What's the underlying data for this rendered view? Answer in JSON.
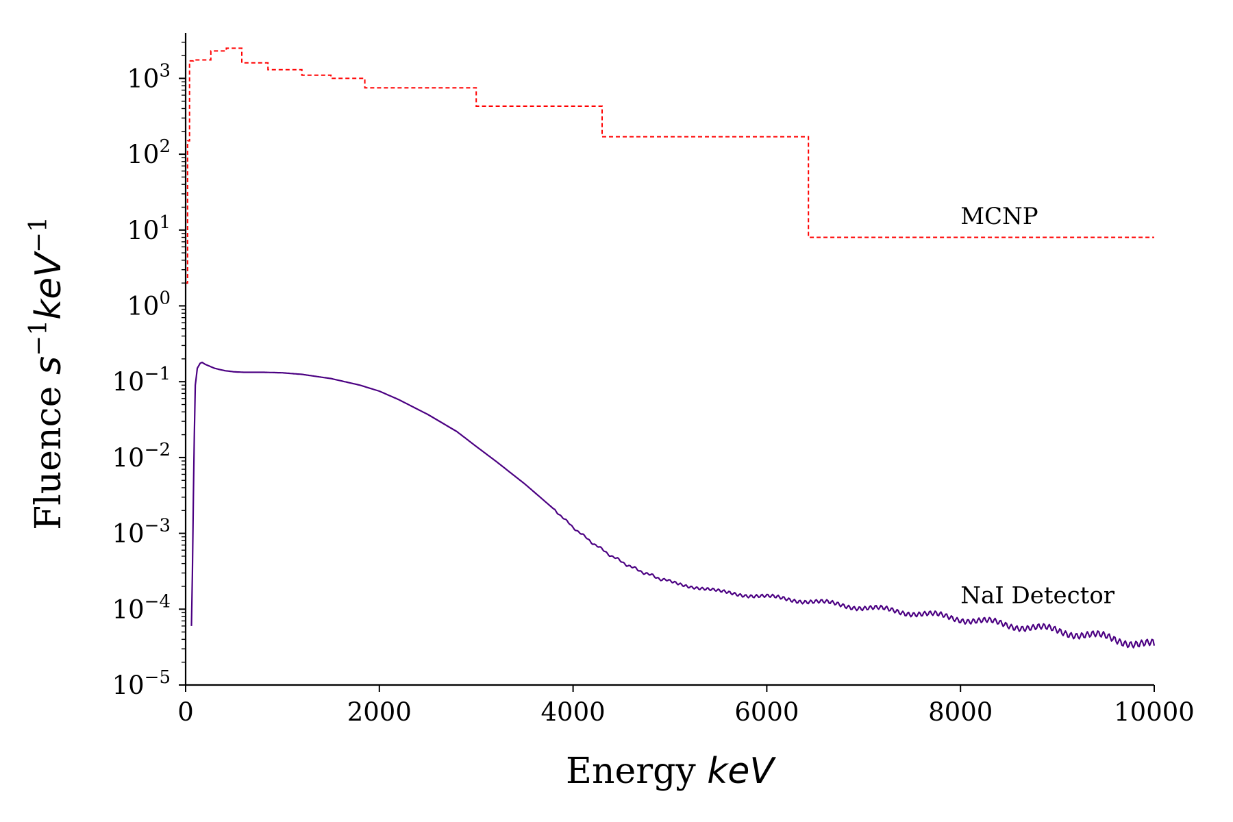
{
  "chart_data": {
    "type": "line",
    "xlabel": {
      "text": "Energy ",
      "unit": "keV"
    },
    "ylabel": {
      "text": "Fluence ",
      "unit_s": "s",
      "unit_s_exp": "−1",
      "unit_kev": "keV",
      "unit_kev_exp": "−1"
    },
    "xlim": [
      0,
      10000
    ],
    "ylim_log10": [
      -5,
      3.6
    ],
    "y_scale": "log",
    "grid": false,
    "x_ticks": [
      {
        "value": 0,
        "label": "0"
      },
      {
        "value": 2000,
        "label": "2000"
      },
      {
        "value": 4000,
        "label": "4000"
      },
      {
        "value": 6000,
        "label": "6000"
      },
      {
        "value": 8000,
        "label": "8000"
      },
      {
        "value": 10000,
        "label": "10000"
      }
    ],
    "y_ticks": [
      {
        "exp": 3,
        "base": "10",
        "power": "3"
      },
      {
        "exp": 2,
        "base": "10",
        "power": "2"
      },
      {
        "exp": 1,
        "base": "10",
        "power": "1"
      },
      {
        "exp": 0,
        "base": "10",
        "power": "0"
      },
      {
        "exp": -1,
        "base": "10",
        "power": "−1"
      },
      {
        "exp": -2,
        "base": "10",
        "power": "−2"
      },
      {
        "exp": -3,
        "base": "10",
        "power": "−3"
      },
      {
        "exp": -4,
        "base": "10",
        "power": "−4"
      },
      {
        "exp": -5,
        "base": "10",
        "power": "−5"
      }
    ],
    "series": [
      {
        "name": "MCNP",
        "style": "dashed-step",
        "color": "#ff0000",
        "label_at": {
          "x": 8000,
          "y": 12
        },
        "steps": [
          {
            "x0": 0,
            "x1": 20,
            "y": 2
          },
          {
            "x0": 20,
            "x1": 40,
            "y": 150
          },
          {
            "x0": 40,
            "x1": 80,
            "y": 1700
          },
          {
            "x0": 80,
            "x1": 260,
            "y": 1750
          },
          {
            "x0": 260,
            "x1": 420,
            "y": 2300
          },
          {
            "x0": 420,
            "x1": 580,
            "y": 2500
          },
          {
            "x0": 580,
            "x1": 850,
            "y": 1600
          },
          {
            "x0": 850,
            "x1": 1200,
            "y": 1300
          },
          {
            "x0": 1200,
            "x1": 1500,
            "y": 1100
          },
          {
            "x0": 1500,
            "x1": 1850,
            "y": 1000
          },
          {
            "x0": 1850,
            "x1": 3000,
            "y": 750
          },
          {
            "x0": 3000,
            "x1": 4300,
            "y": 430
          },
          {
            "x0": 4300,
            "x1": 6430,
            "y": 170
          },
          {
            "x0": 6430,
            "x1": 10000,
            "y": 8
          }
        ]
      },
      {
        "name": "NaI Detector",
        "style": "solid",
        "color": "#4b0082",
        "label_at": {
          "x": 8000,
          "y": 0.00012
        },
        "x": [
          60,
          70,
          80,
          90,
          100,
          120,
          150,
          170,
          200,
          300,
          400,
          500,
          600,
          800,
          1000,
          1200,
          1500,
          1800,
          2000,
          2200,
          2500,
          2800,
          3000,
          3200,
          3500,
          3800,
          4000,
          4200,
          4400,
          4600,
          4800,
          5000,
          5500,
          6000,
          6500,
          7000,
          7500,
          8000,
          8500,
          9000,
          9500,
          10000
        ],
        "y": [
          6e-05,
          0.0003,
          0.003,
          0.02,
          0.09,
          0.15,
          0.175,
          0.18,
          0.17,
          0.15,
          0.14,
          0.135,
          0.133,
          0.133,
          0.131,
          0.125,
          0.11,
          0.09,
          0.075,
          0.058,
          0.037,
          0.022,
          0.014,
          0.009,
          0.0045,
          0.0021,
          0.0012,
          0.00075,
          0.0005,
          0.00036,
          0.00028,
          0.00023,
          0.00017,
          0.000145,
          0.000125,
          0.000105,
          9e-05,
          7.5e-05,
          6.2e-05,
          5.2e-05,
          4.2e-05,
          3.3e-05
        ]
      }
    ]
  }
}
